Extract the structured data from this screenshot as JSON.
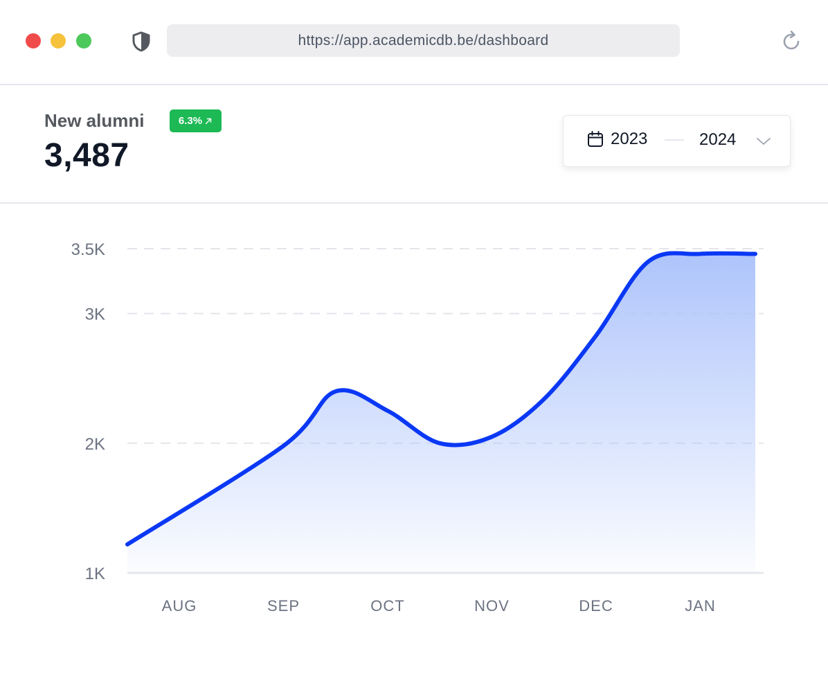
{
  "window": {
    "url": "https://app.academicdb.be/dashboard",
    "controls": [
      "close",
      "minimize",
      "maximize"
    ],
    "icons": {
      "security": "shield-icon",
      "reload": "reload-icon"
    }
  },
  "metric": {
    "label": "New alumni",
    "value": "3,487",
    "change": "6.3%",
    "change_icon": "arrow-up-right-icon",
    "change_color": "#1db954"
  },
  "date_range": {
    "from": "2023",
    "to": "2024",
    "icons": {
      "calendar": "calendar-icon",
      "dropdown": "chevron-down-icon"
    }
  },
  "chart_data": {
    "type": "area",
    "categories": [
      "AUG",
      "SEP",
      "OCT",
      "NOV",
      "DEC",
      "JAN"
    ],
    "x": [
      0.5,
      1,
      1.5,
      2,
      2.5,
      3,
      3.5,
      4,
      4.5,
      5,
      5.5
    ],
    "values": [
      1220,
      1980,
      2400,
      2250,
      2000,
      2050,
      2340,
      2830,
      3400,
      3460,
      3460
    ],
    "y_ticks": [
      1000,
      2000,
      3000,
      3500
    ],
    "y_tick_labels": [
      "1K",
      "2K",
      "3K",
      "3.5K"
    ],
    "ylim": [
      1000,
      3500
    ],
    "grid": true,
    "line_color": "#0a38f5",
    "fill_color": "#aec4fb",
    "title": "",
    "xlabel": "",
    "ylabel": ""
  }
}
